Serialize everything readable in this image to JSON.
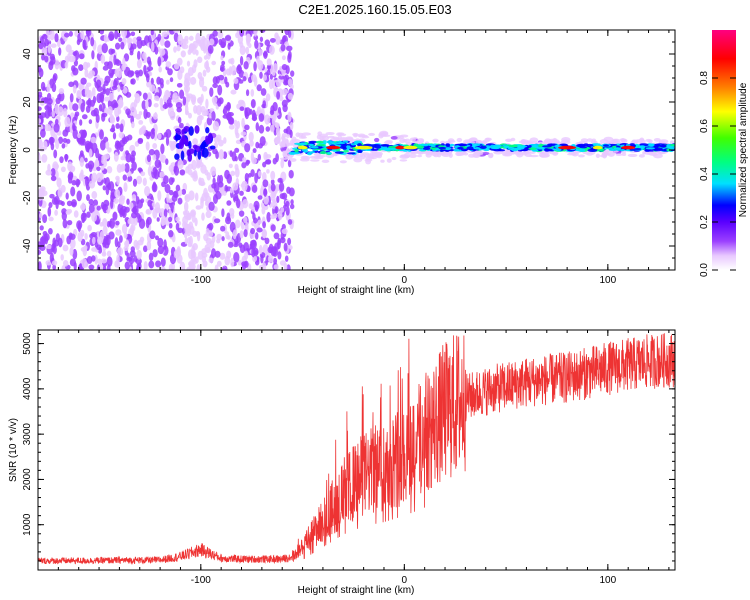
{
  "title": "C2E1.2025.160.15.05.E03",
  "chart_data": [
    {
      "type": "heatmap",
      "xlabel": "Height of straight line (km)",
      "ylabel": "Frequency (Hz)",
      "xlim": [
        -180,
        133
      ],
      "ylim": [
        -50,
        50
      ],
      "xticks": [
        -100,
        0,
        100
      ],
      "yticks": [
        -40,
        -20,
        0,
        20,
        40
      ],
      "grid": false,
      "colorbar": {
        "label": "Normalized spectral amplitude",
        "range": [
          0,
          1
        ],
        "ticks": [
          "0.0",
          "0.2",
          "0.4",
          "0.6",
          "0.8"
        ],
        "colormap": [
          "#ffffff",
          "#e8c8ff",
          "#9b40ff",
          "#5a00ff",
          "#0000ff",
          "#00e0ff",
          "#00ff80",
          "#40ff00",
          "#ffff00",
          "#ff8000",
          "#ff0000",
          "#ff0080"
        ]
      },
      "features": {
        "noise_region_x": [
          -180,
          -55
        ],
        "carrier_line_frequency_hz": 1,
        "carrier_line_x": [
          -55,
          133
        ],
        "peak_spots_x": [
          -50,
          -35,
          -20,
          -2,
          3,
          80,
          95,
          110
        ]
      }
    },
    {
      "type": "line",
      "xlabel": "Height of straight line (km)",
      "ylabel": "SNR (10 * v/v)",
      "xlim": [
        -180,
        133
      ],
      "ylim": [
        0,
        5300
      ],
      "xticks": [
        -100,
        0,
        100
      ],
      "yticks": [
        1000,
        2000,
        3000,
        4000,
        5000
      ],
      "grid": false,
      "series": [
        {
          "color": "#ee3333",
          "envelope": {
            "x": [
              -180,
              -120,
              -110,
              -100,
              -90,
              -80,
              -60,
              -55,
              -50,
              -45,
              -40,
              -35,
              -30,
              -25,
              -20,
              -15,
              -10,
              -5,
              0,
              10,
              20,
              30,
              40,
              60,
              80,
              100,
              120,
              133
            ],
            "y": [
              200,
              220,
              300,
              450,
              260,
              240,
              240,
              300,
              500,
              800,
              1100,
              1400,
              1700,
              1900,
              2100,
              2200,
              2300,
              2450,
              2600,
              3000,
              3500,
              3800,
              3950,
              4150,
              4250,
              4450,
              4600,
              4650
            ]
          }
        }
      ]
    }
  ]
}
